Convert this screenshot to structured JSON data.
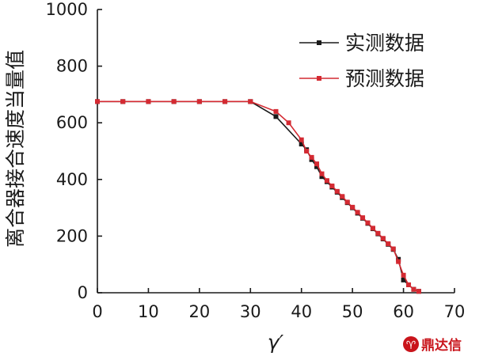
{
  "chart_data": {
    "type": "line",
    "xlabel": "γ′",
    "ylabel": "离合器接合速度当量值",
    "xlim": [
      0,
      70
    ],
    "ylim": [
      0,
      1000
    ],
    "xticks": [
      0,
      10,
      20,
      30,
      40,
      50,
      60,
      70
    ],
    "yticks": [
      0,
      200,
      400,
      600,
      800,
      1000
    ],
    "grid": false,
    "legend_position": "top-right",
    "series": [
      {
        "name": "实测数据",
        "color": "#1a1a1a",
        "marker": "square",
        "points": [
          [
            0,
            675
          ],
          [
            5,
            675
          ],
          [
            10,
            675
          ],
          [
            15,
            675
          ],
          [
            20,
            675
          ],
          [
            25,
            675
          ],
          [
            30,
            675
          ],
          [
            35,
            622
          ],
          [
            40,
            525
          ],
          [
            41,
            505
          ],
          [
            42,
            470
          ],
          [
            43,
            445
          ],
          [
            44,
            410
          ],
          [
            45,
            392
          ],
          [
            46,
            373
          ],
          [
            47,
            355
          ],
          [
            48,
            336
          ],
          [
            49,
            318
          ],
          [
            50,
            300
          ],
          [
            51,
            281
          ],
          [
            52,
            263
          ],
          [
            53,
            245
          ],
          [
            54,
            226
          ],
          [
            55,
            208
          ],
          [
            56,
            190
          ],
          [
            57,
            171
          ],
          [
            58,
            153
          ],
          [
            59,
            118
          ],
          [
            60,
            45
          ],
          [
            61,
            28
          ],
          [
            62,
            12
          ],
          [
            63,
            5
          ]
        ]
      },
      {
        "name": "预测数据",
        "color": "#d42a32",
        "marker": "square",
        "points": [
          [
            0,
            675
          ],
          [
            5,
            675
          ],
          [
            10,
            675
          ],
          [
            15,
            675
          ],
          [
            20,
            675
          ],
          [
            25,
            675
          ],
          [
            30,
            675
          ],
          [
            35,
            640
          ],
          [
            37.5,
            600
          ],
          [
            40,
            540
          ],
          [
            41,
            500
          ],
          [
            42,
            478
          ],
          [
            43,
            455
          ],
          [
            44,
            420
          ],
          [
            45,
            396
          ],
          [
            46,
            377
          ],
          [
            47,
            358
          ],
          [
            48,
            340
          ],
          [
            49,
            320
          ],
          [
            50,
            302
          ],
          [
            51,
            284
          ],
          [
            52,
            265
          ],
          [
            53,
            247
          ],
          [
            54,
            228
          ],
          [
            55,
            210
          ],
          [
            56,
            192
          ],
          [
            57,
            173
          ],
          [
            58,
            155
          ],
          [
            59,
            110
          ],
          [
            60,
            62
          ],
          [
            61,
            28
          ],
          [
            62,
            12
          ],
          [
            63,
            5
          ]
        ]
      }
    ]
  },
  "watermark": {
    "text": "鼎达信",
    "color": "#c9141b"
  }
}
